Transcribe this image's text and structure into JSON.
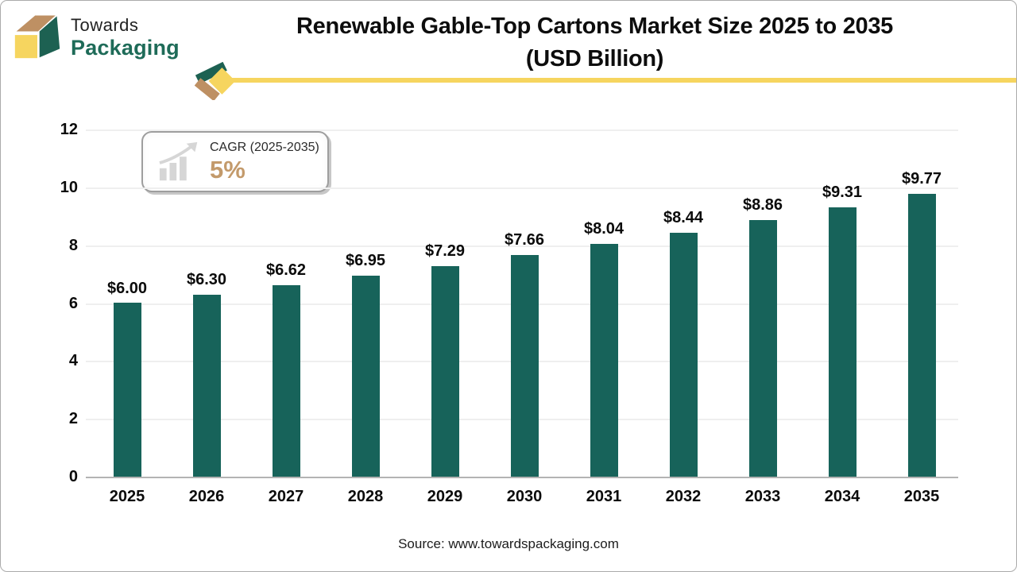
{
  "logo": {
    "line1": "Towards",
    "line2": "Packaging"
  },
  "header": {
    "title_line1": "Renewable Gable-Top Cartons Market Size 2025 to 2035",
    "title_line2": "(USD Billion)"
  },
  "cagr_badge": {
    "label": "CAGR (2025-2035)",
    "value": "5%"
  },
  "chart_data": {
    "type": "bar",
    "title": "Renewable Gable-Top Cartons Market Size 2025 to 2035 (USD Billion)",
    "categories": [
      "2025",
      "2026",
      "2027",
      "2028",
      "2029",
      "2030",
      "2031",
      "2032",
      "2033",
      "2034",
      "2035"
    ],
    "values": [
      6.0,
      6.3,
      6.62,
      6.95,
      7.29,
      7.66,
      8.04,
      8.44,
      8.86,
      9.31,
      9.77
    ],
    "labels": [
      "$6.00",
      "$6.30",
      "$6.62",
      "$6.95",
      "$7.29",
      "$7.66",
      "$8.04",
      "$8.44",
      "$8.86",
      "$9.31",
      "$9.77"
    ],
    "unit": "USD Billion",
    "ylim": [
      0,
      12
    ],
    "yticks": [
      0,
      2,
      4,
      6,
      8,
      10,
      12
    ],
    "grid": true,
    "legend": false,
    "bar_color": "#17635A"
  },
  "footer": {
    "source": "Source: www.towardspackaging.com"
  },
  "colors": {
    "bar": "#17635A",
    "logo_green": "#1E6B58",
    "cube_green": "#1D6152",
    "tan": "#BE9063",
    "yellow": "#F6D55F",
    "cagr_value": "#C39A6B",
    "icon_gray": "#D6D6D6"
  }
}
